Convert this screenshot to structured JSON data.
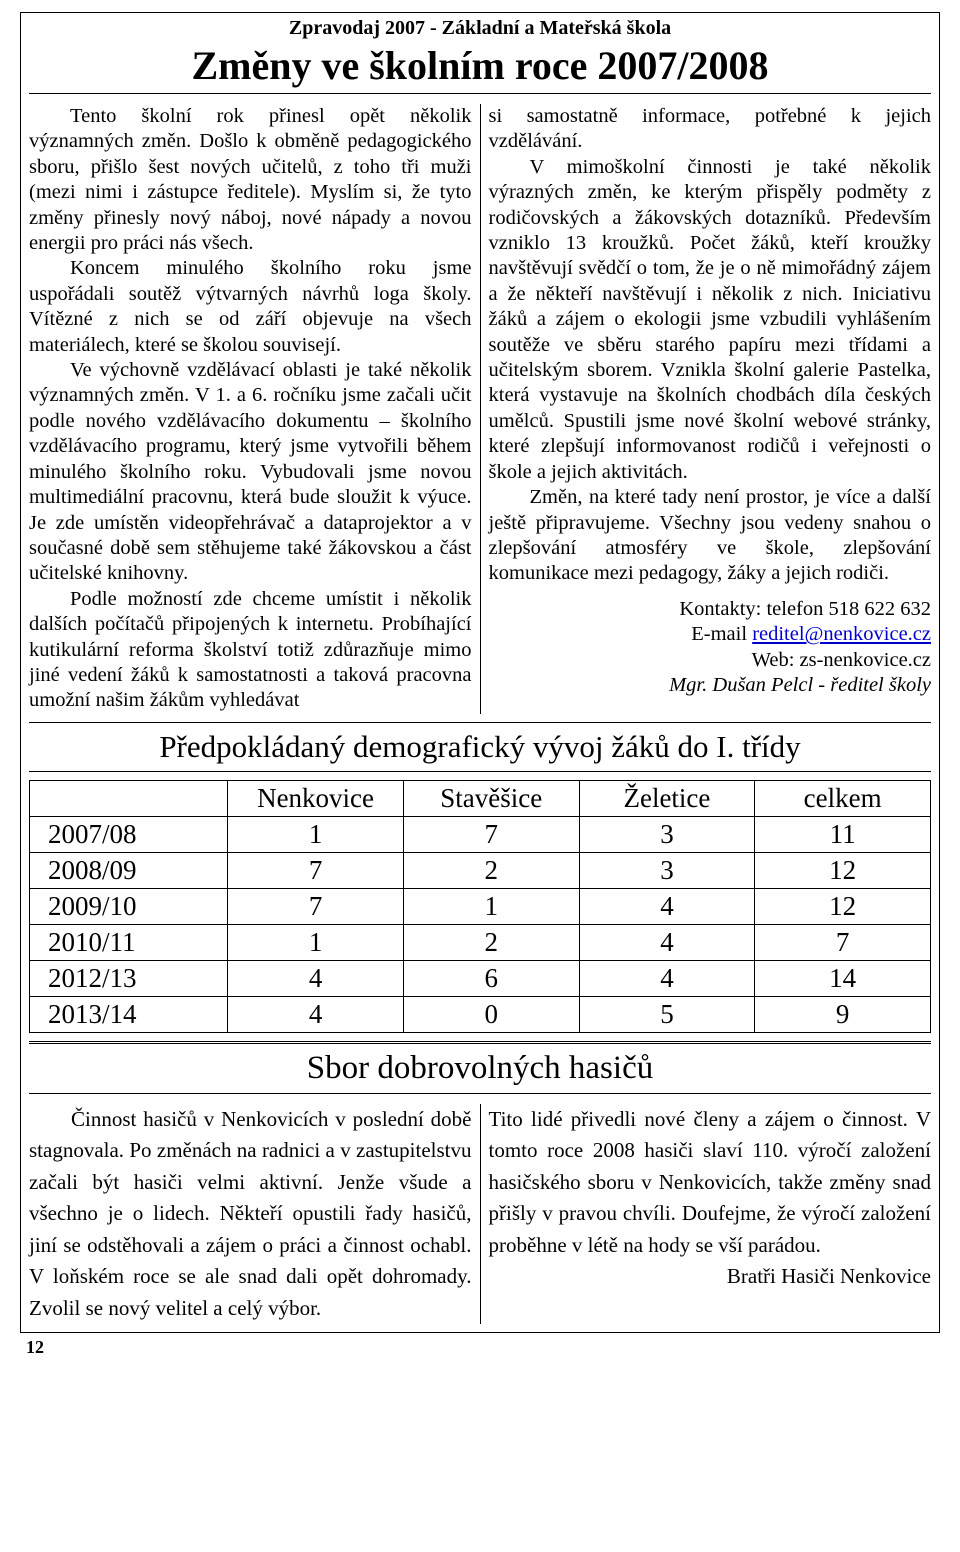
{
  "header": "Zpravodaj 2007 - Základní a Mateřská škola",
  "article1": {
    "title": "Změny ve školním roce 2007/2008",
    "left": {
      "p1": "Tento školní rok přinesl opět několik významných změn. Došlo k obměně pedagogického sboru, přišlo šest nových učitelů, z toho tři muži (mezi nimi i zástupce ředitele). Myslím si, že tyto změny přinesly nový náboj, nové nápady a novou energii pro práci nás všech.",
      "p2": "Koncem minulého školního roku jsme uspořádali soutěž výtvarných návrhů loga školy. Vítězné z nich se od září objevuje na všech materiálech, které se školou souvisejí.",
      "p3": "Ve výchovně vzdělávací oblasti je také několik významných změn. V 1. a 6. ročníku jsme začali učit podle nového vzdělávacího dokumentu – školního vzdělávacího programu, který jsme vytvořili během minulého školního roku. Vybudovali jsme novou multimediální pracovnu, která bude sloužit k výuce. Je zde umístěn videopřehrávač a dataprojektor a v současné době sem stěhujeme také žákovskou a část učitelské knihovny.",
      "p4": "Podle možností zde chceme umístit i několik dalších počítačů připojených k internetu. Probíhající kutikulární reforma školství totiž zdůrazňuje mimo jiné vedení žáků k samostatnosti a taková pracovna umožní našim žákům vyhledávat"
    },
    "right": {
      "p1": "si samostatně informace, potřebné k jejich vzdělávání.",
      "p2": "V mimoškolní činnosti je také několik výrazných změn, ke kterým přispěly podměty z rodičovských a žákovských dotazníků. Především vzniklo 13 kroužků. Počet žáků, kteří kroužky navštěvují svědčí o tom, že je o ně mimořádný zájem a že někteří navštěvují i několik z nich. Iniciativu žáků a zájem o ekologii jsme vzbudili vyhlášením soutěže ve sběru starého papíru mezi třídami a učitelským sborem. Vznikla školní galerie Pastelka, která vystavuje na školních chodbách díla českých umělců. Spustili jsme nové školní webové stránky, které zlepšují informovanost rodičů i veřejnosti o škole a jejich aktivitách.",
      "p3": "Změn, na které tady není prostor, je více a další ještě připravujeme. Všechny jsou vedeny snahou o zlepšování atmosféry ve škole, zlepšování komunikace mezi pedagogy, žáky a jejich rodiči.",
      "contact_phone": "Kontakty: telefon 518 622 632",
      "contact_email_label": "E-mail ",
      "contact_email": "reditel@nenkovice.cz",
      "contact_web": "Web:   zs-nenkovice.cz",
      "signature": "Mgr. Dušan Pelcl - ředitel školy"
    }
  },
  "demographics": {
    "title": "Předpokládaný demografický vývoj žáků do I. třídy",
    "columns": [
      "",
      "Nenkovice",
      "Stavěšice",
      "Želetice",
      "celkem"
    ],
    "rows": [
      [
        "2007/08",
        "1",
        "7",
        "3",
        "11"
      ],
      [
        "2008/09",
        "7",
        "2",
        "3",
        "12"
      ],
      [
        "2009/10",
        "7",
        "1",
        "4",
        "12"
      ],
      [
        "2010/11",
        "1",
        "2",
        "4",
        "7"
      ],
      [
        "2012/13",
        "4",
        "6",
        "4",
        "14"
      ],
      [
        "2013/14",
        "4",
        "0",
        "5",
        "9"
      ]
    ],
    "col_widths_pct": [
      22,
      19.5,
      19.5,
      19.5,
      19.5
    ]
  },
  "fire": {
    "title": "Sbor dobrovolných hasičů",
    "left": "Činnost hasičů v Nenkovicích v poslední době stagnovala. Po změnách na radnici a v zastupitelstvu začali být hasiči velmi aktivní. Jenže všude a všechno je o lidech. Někteří opustili řady hasičů, jiní se odstěhovali a zájem o práci a činnost ochabl. V loňském roce se ale snad dali opět dohromady. Zvolil se nový velitel a celý výbor.",
    "right": "Tito lidé přivedli nové členy a zájem o činnost. V tomto roce 2008 hasiči slaví 110. výročí založení hasičského sboru v Nenkovicích, takže změny snad přišly v pravou chvíli. Doufejme, že výročí založení proběhne v létě na hody se vší parádou.",
    "signature": "Bratři Hasiči Nenkovice"
  },
  "page_number": "12"
}
